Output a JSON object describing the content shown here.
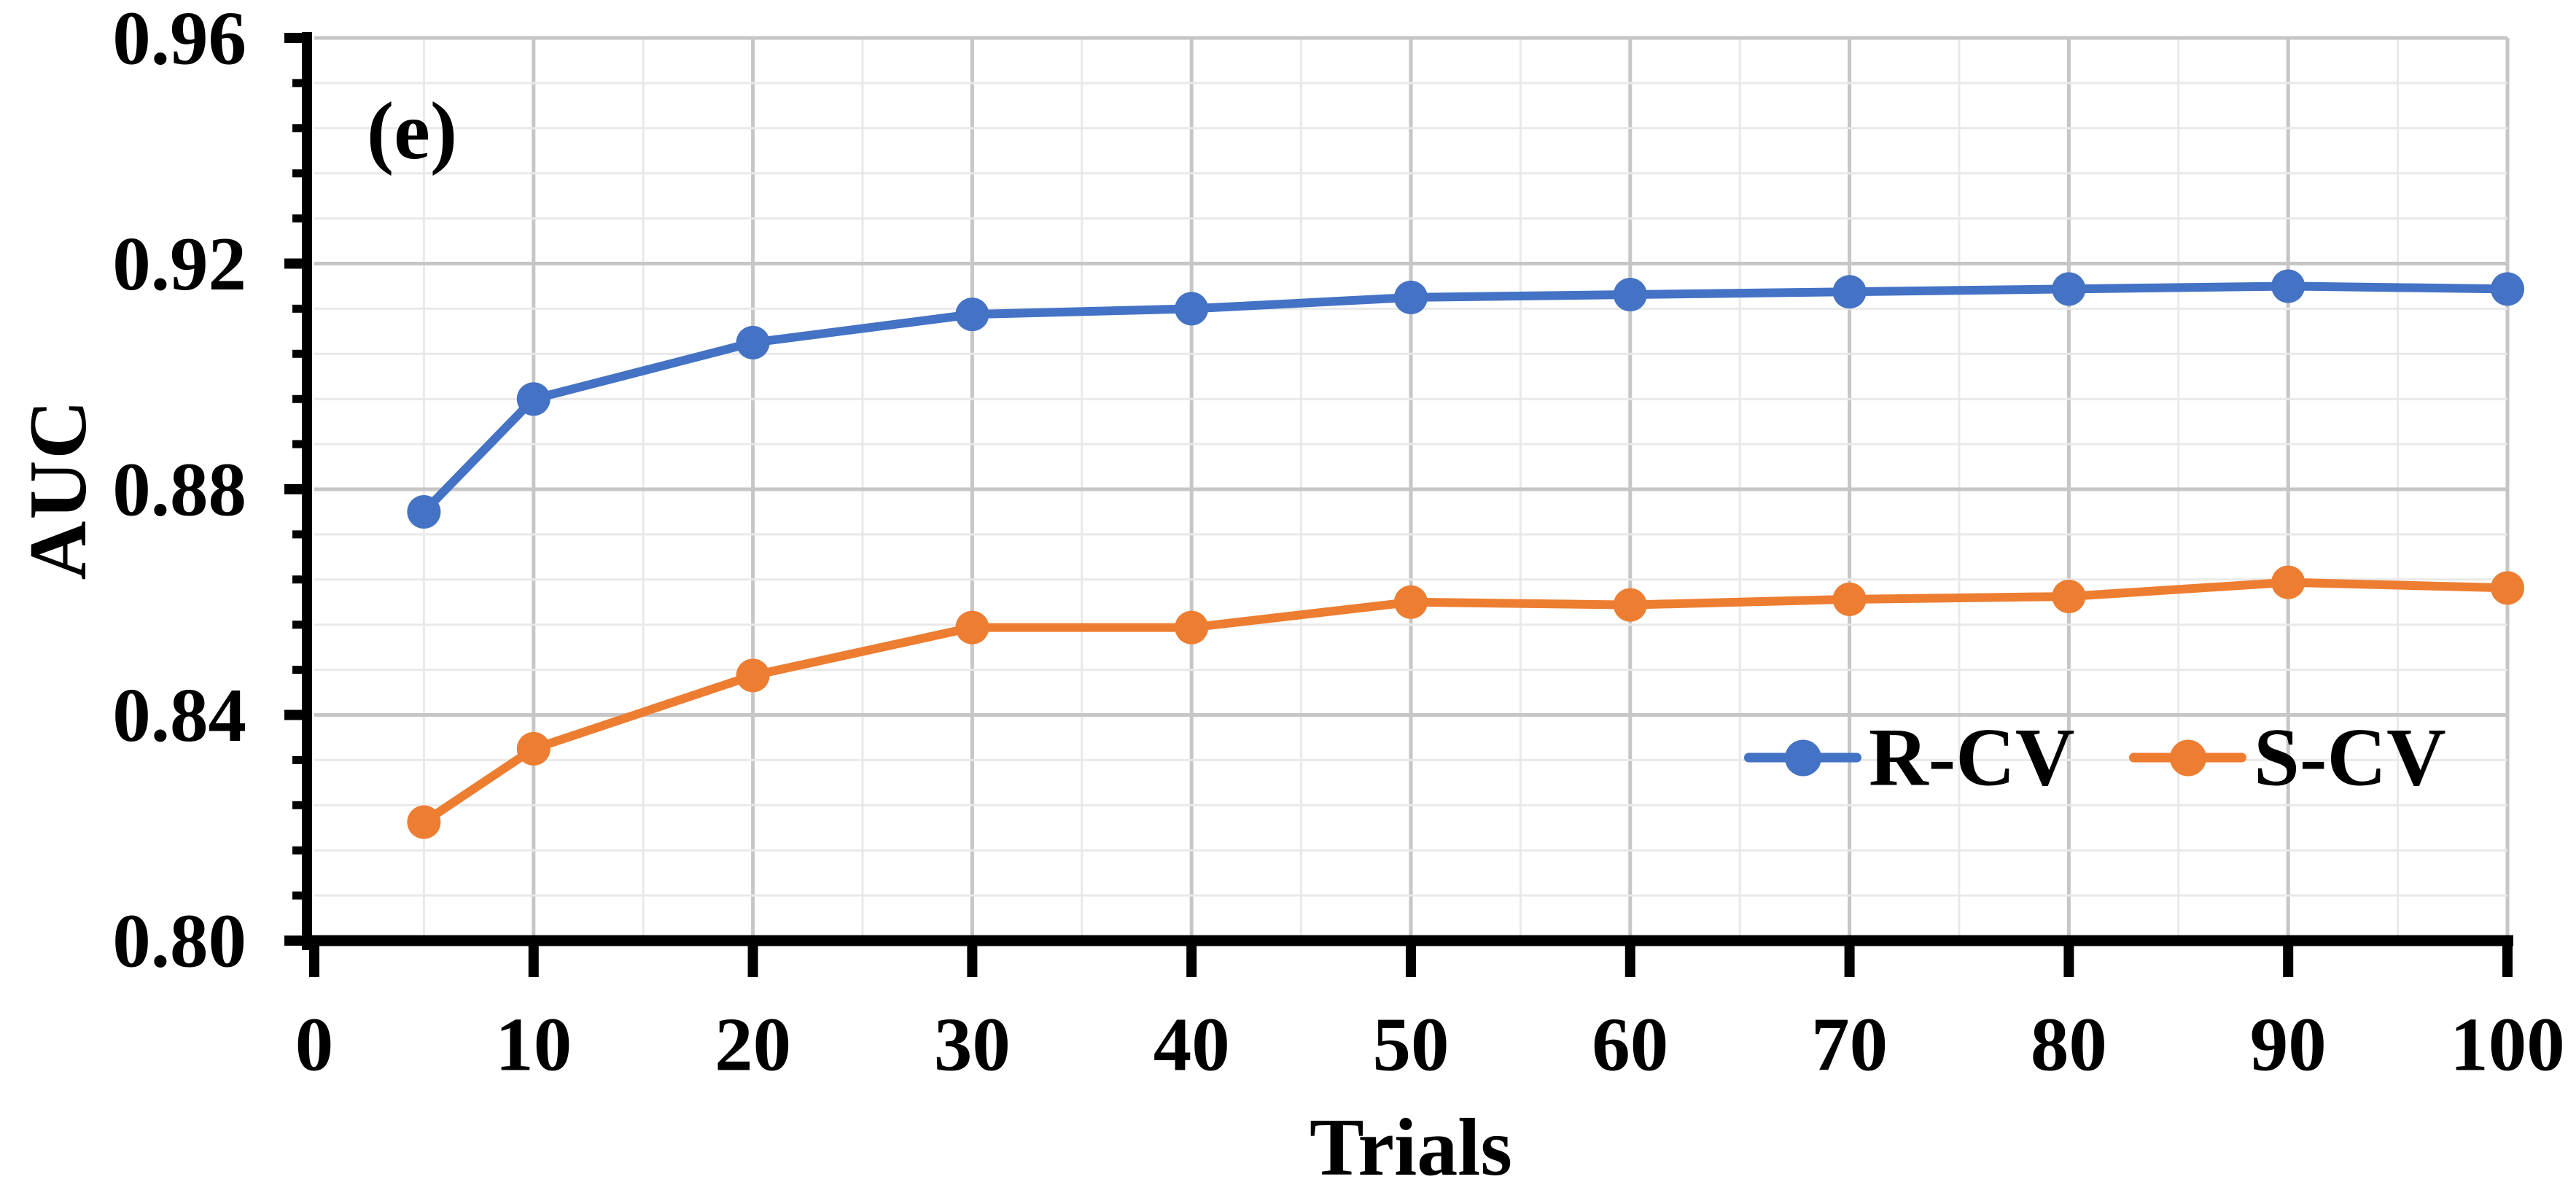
{
  "figure": {
    "panel_label": "(e)",
    "background_color": "#FFFFFF",
    "text_color": "#000000"
  },
  "chart_data": {
    "type": "line",
    "title": "",
    "xlabel": "Trials",
    "ylabel": "AUC",
    "x": [
      5,
      10,
      20,
      30,
      40,
      50,
      60,
      70,
      80,
      90,
      100
    ],
    "series": [
      {
        "name": "R-CV",
        "color": "#4472C4",
        "marker": "circle",
        "values": [
          0.876,
          0.896,
          0.906,
          0.911,
          0.912,
          0.914,
          0.9145,
          0.915,
          0.9155,
          0.916,
          0.9155
        ]
      },
      {
        "name": "S-CV",
        "color": "#ED7D31",
        "marker": "circle",
        "values": [
          0.821,
          0.834,
          0.847,
          0.8555,
          0.8555,
          0.86,
          0.8595,
          0.8605,
          0.861,
          0.8635,
          0.8625
        ]
      }
    ],
    "xlim": [
      0,
      100
    ],
    "ylim": [
      0.8,
      0.96
    ],
    "x_ticks": [
      0,
      10,
      20,
      30,
      40,
      50,
      60,
      70,
      80,
      90,
      100
    ],
    "x_tick_labels": [
      "0",
      "10",
      "20",
      "30",
      "40",
      "50",
      "60",
      "70",
      "80",
      "90",
      "100"
    ],
    "y_ticks": [
      0.8,
      0.84,
      0.88,
      0.92,
      0.96
    ],
    "y_tick_labels": [
      "0.80",
      "0.84",
      "0.88",
      "0.92",
      "0.96"
    ],
    "x_minor_step": 5,
    "y_minor_step": 0.008,
    "grid": "major and minor, both axes",
    "legend_position": "inside bottom-right",
    "axis_color": "#000000",
    "major_grid_color": "#C6C6C6",
    "minor_grid_color": "#E9E9E9"
  }
}
